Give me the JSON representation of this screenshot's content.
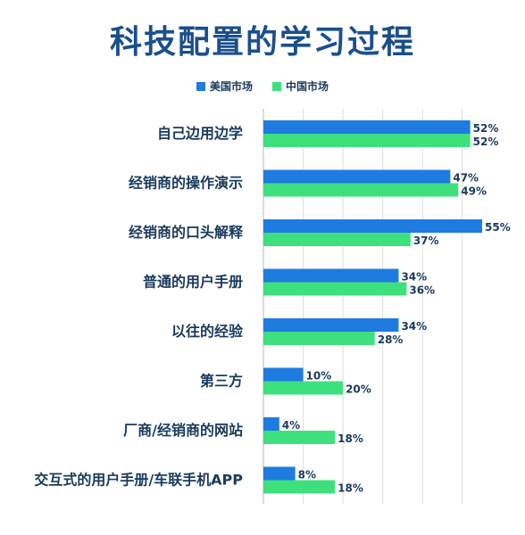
{
  "chart_data": {
    "type": "bar",
    "orientation": "horizontal",
    "title": "科技配置的学习过程",
    "categories": [
      "自己边用边学",
      "经销商的操作演示",
      "经销商的口头解释",
      "普通的用户手册",
      "以往的经验",
      "第三方",
      "厂商/经销商的网站",
      "交互式的用户手册/车联手机APP"
    ],
    "series": [
      {
        "name": "美国市场",
        "color": "#1e7be0",
        "values": [
          52,
          47,
          55,
          34,
          34,
          10,
          4,
          8
        ]
      },
      {
        "name": "中国市场",
        "color": "#3ee07e",
        "values": [
          52,
          49,
          37,
          36,
          28,
          20,
          18,
          18
        ]
      }
    ],
    "value_suffix": "%",
    "xlim": [
      0,
      55
    ],
    "legend_position": "top-center",
    "grid": true
  }
}
